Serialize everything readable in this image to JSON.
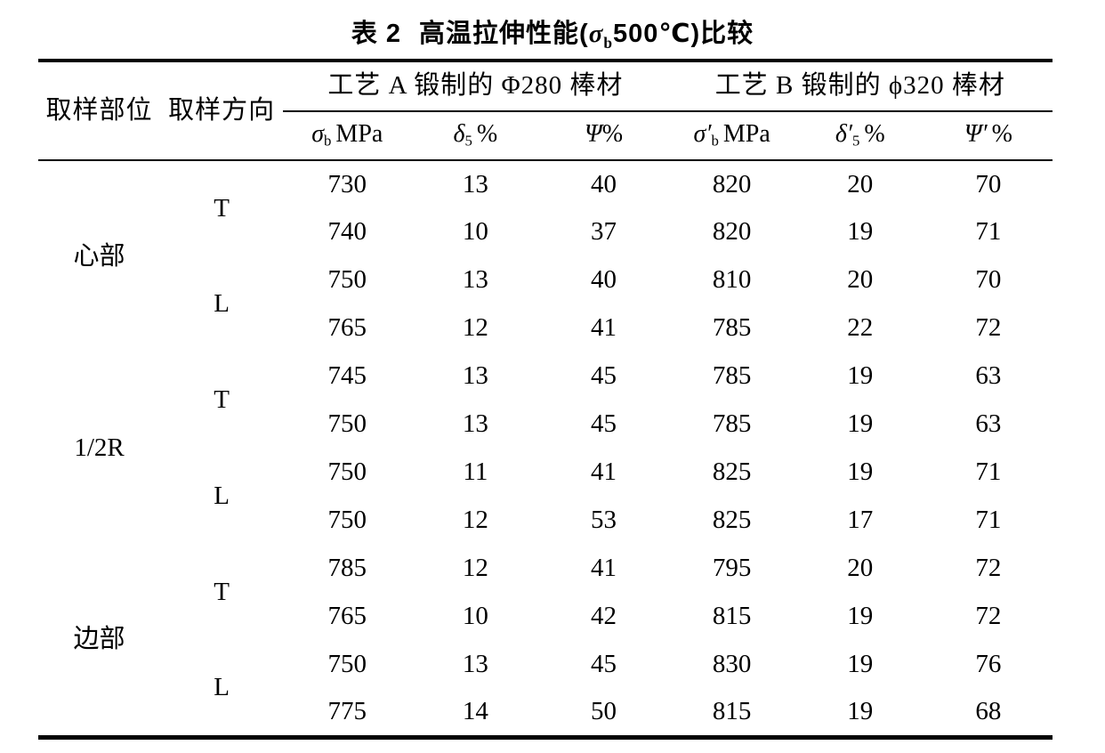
{
  "caption": {
    "label": "表 2",
    "before_formula": "高温拉伸性能(",
    "formula_symbol": "σ",
    "formula_subscript": "b",
    "after_formula": "500℃)比较"
  },
  "header": {
    "part_col": "取样部位",
    "direction_col": "取样方向",
    "group_a_label": "工艺 A 锻制的 Φ280 棒材",
    "group_b_label": "工艺 B 锻制的 ϕ320 棒材",
    "subcolumns": [
      {
        "symbol": "σ",
        "prime": "",
        "subscript": "b",
        "unit": "MPa"
      },
      {
        "symbol": "δ",
        "prime": "",
        "subscript": "5",
        "unit": "%"
      },
      {
        "symbol": "Ψ",
        "prime": "",
        "subscript": "",
        "unit": "%"
      },
      {
        "symbol": "σ",
        "prime": "′",
        "subscript": "b",
        "unit": "MPa"
      },
      {
        "symbol": "δ",
        "prime": "′",
        "subscript": "5",
        "unit": "%"
      },
      {
        "symbol": "Ψ",
        "prime": "′",
        "subscript": "",
        "unit": "%"
      }
    ]
  },
  "chart_data": {
    "type": "table",
    "title": "表2 高温拉伸性能(σb500℃)比较",
    "row_header_columns": [
      "取样部位",
      "取样方向"
    ],
    "column_groups": [
      {
        "label": "工艺 A 锻制的 Φ280 棒材",
        "columns": [
          "σb MPa",
          "δ5 %",
          "Ψ%"
        ]
      },
      {
        "label": "工艺 B 锻制的 ϕ320 棒材",
        "columns": [
          "σ′b MPa",
          "δ′5 %",
          "Ψ′%"
        ]
      }
    ],
    "rows": [
      [
        "心部",
        "T",
        730,
        13,
        40,
        820,
        20,
        70
      ],
      [
        "心部",
        "T",
        740,
        10,
        37,
        820,
        19,
        71
      ],
      [
        "心部",
        "L",
        750,
        13,
        40,
        810,
        20,
        70
      ],
      [
        "心部",
        "L",
        765,
        12,
        41,
        785,
        22,
        72
      ],
      [
        "1/2R",
        "T",
        745,
        13,
        45,
        785,
        19,
        63
      ],
      [
        "1/2R",
        "T",
        750,
        13,
        45,
        785,
        19,
        63
      ],
      [
        "1/2R",
        "L",
        750,
        11,
        41,
        825,
        19,
        71
      ],
      [
        "1/2R",
        "L",
        750,
        12,
        53,
        825,
        17,
        71
      ],
      [
        "边部",
        "T",
        785,
        12,
        41,
        795,
        20,
        72
      ],
      [
        "边部",
        "T",
        765,
        10,
        42,
        815,
        19,
        72
      ],
      [
        "边部",
        "L",
        750,
        13,
        45,
        830,
        19,
        76
      ],
      [
        "边部",
        "L",
        775,
        14,
        50,
        815,
        19,
        68
      ]
    ]
  }
}
